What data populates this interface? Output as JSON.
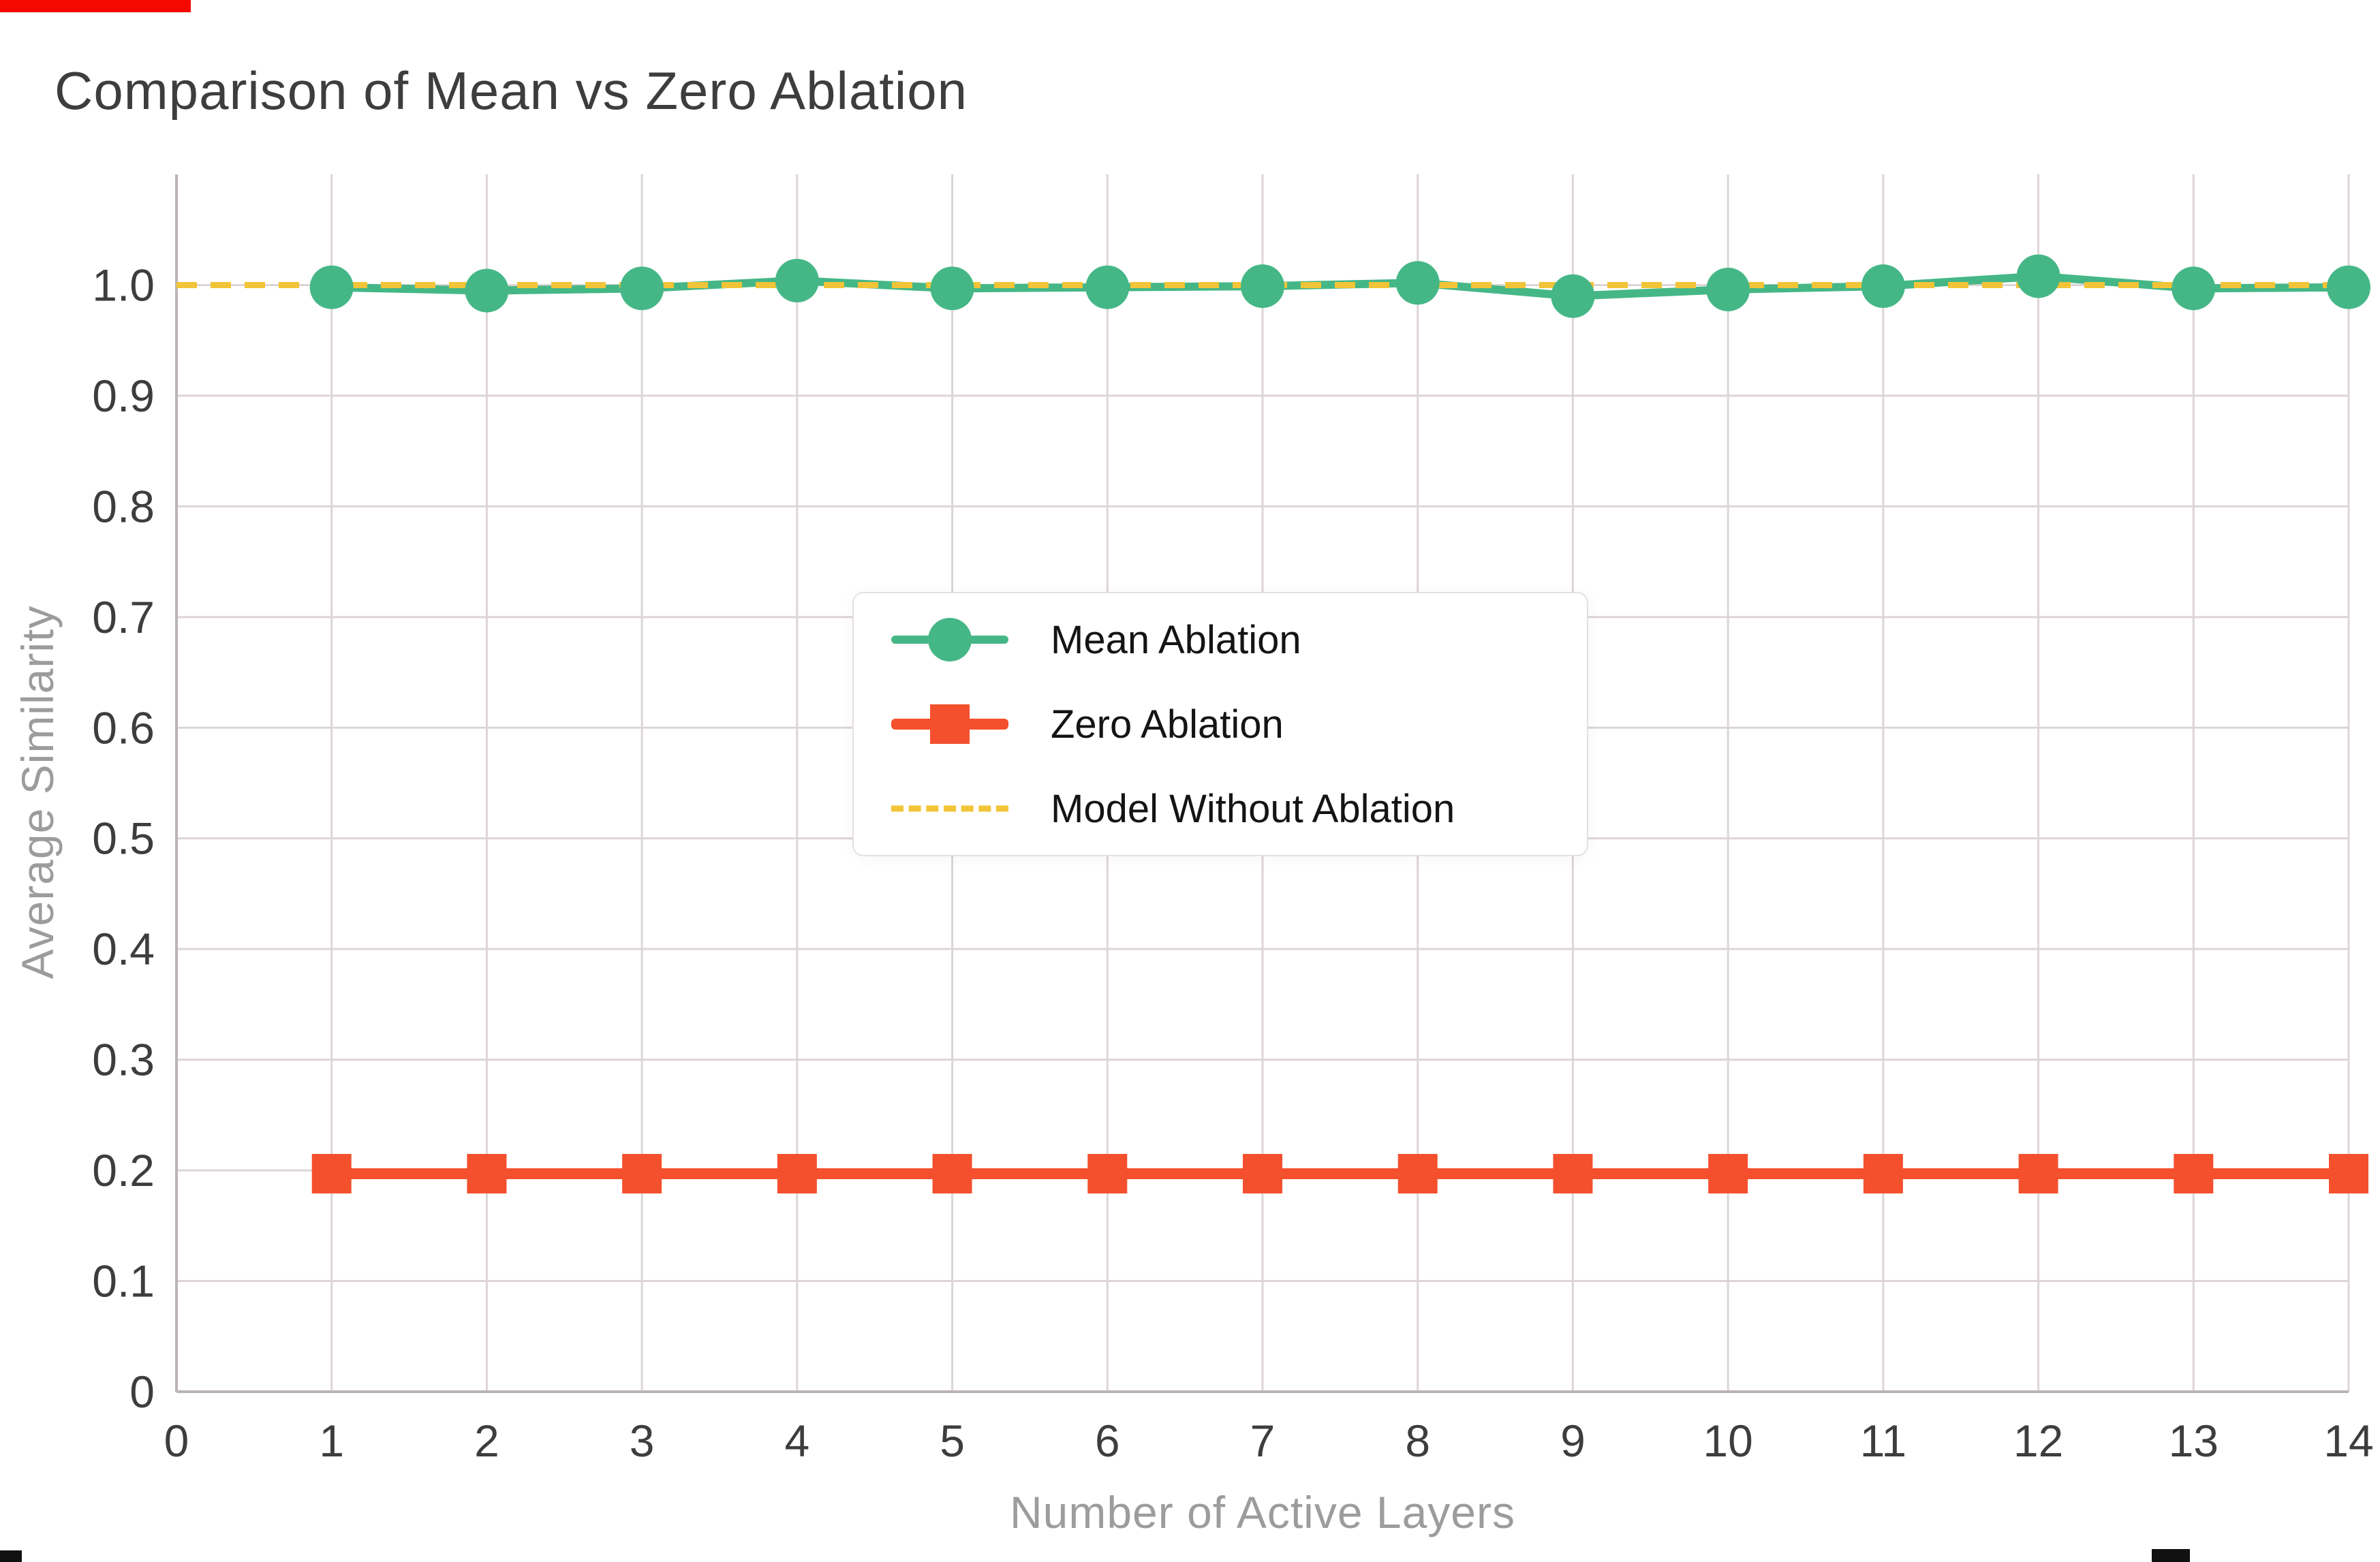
{
  "chart_data": {
    "type": "line",
    "title": "Comparison of Mean vs Zero Ablation",
    "xlabel": "Number of Active Layers",
    "ylabel": "Average Similarity",
    "xlim": [
      0,
      14
    ],
    "ylim": [
      0,
      1.1
    ],
    "xtick_values": [
      0,
      1,
      2,
      3,
      4,
      5,
      6,
      7,
      8,
      9,
      10,
      11,
      12,
      13,
      14
    ],
    "xtick_labels": [
      "0",
      "1",
      "2",
      "3",
      "4",
      "5",
      "6",
      "7",
      "8",
      "9",
      "10",
      "11",
      "12",
      "13",
      "14"
    ],
    "ytick_values": [
      0,
      0.1,
      0.2,
      0.3,
      0.4,
      0.5,
      0.6,
      0.7,
      0.8,
      0.9,
      1.0
    ],
    "ytick_labels": [
      "0",
      "0.1",
      "0.2",
      "0.3",
      "0.4",
      "0.5",
      "0.6",
      "0.7",
      "0.8",
      "0.9",
      "1.0"
    ],
    "grid": true,
    "grid_color": "#ddd5d5",
    "spine_color": "#bcb4b4",
    "tick_color": "#3d3d3d",
    "background": "#ffffff",
    "legend_position": "center",
    "x": [
      1,
      2,
      3,
      4,
      5,
      6,
      7,
      8,
      9,
      10,
      11,
      12,
      13,
      14
    ],
    "series": [
      {
        "name": "Mean Ablation",
        "type": "line",
        "marker": "circle",
        "color": "#45b786",
        "values": [
          0.998,
          0.995,
          0.997,
          1.004,
          0.997,
          0.998,
          0.999,
          1.002,
          0.99,
          0.996,
          0.999,
          1.008,
          0.997,
          0.998
        ]
      },
      {
        "name": "Zero Ablation",
        "type": "line",
        "marker": "square",
        "color": "#f4502d",
        "values": [
          0.197,
          0.197,
          0.197,
          0.197,
          0.197,
          0.197,
          0.197,
          0.197,
          0.197,
          0.197,
          0.197,
          0.197,
          0.197,
          0.197
        ]
      },
      {
        "name": "Model Without Ablation",
        "type": "hline",
        "style": "dashed",
        "color": "#f2c437",
        "y": 1.0
      }
    ]
  },
  "decorations": {
    "topleft_bar_color": "#f50800",
    "bottom_mark_color": "#111111"
  }
}
